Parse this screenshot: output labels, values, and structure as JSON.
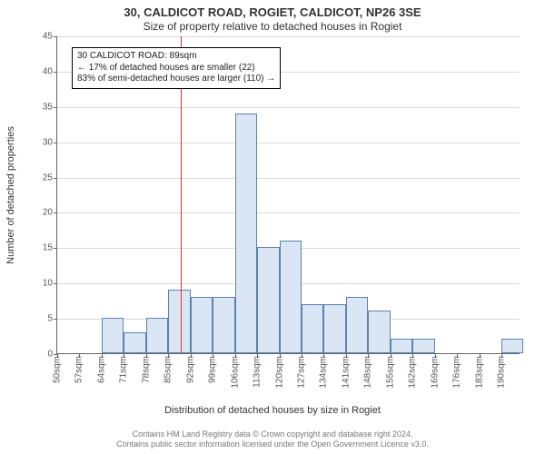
{
  "title_main": "30, CALDICOT ROAD, ROGIET, CALDICOT, NP26 3SE",
  "title_sub": "Size of property relative to detached houses in Rogiet",
  "ylabel": "Number of detached properties",
  "xlabel": "Distribution of detached houses by size in Rogiet",
  "footer_line1": "Contains HM Land Registry data © Crown copyright and database right 2024.",
  "footer_line2": "Contains public sector information licensed under the Open Government Licence v3.0.",
  "annotation": {
    "line1": "30 CALDICOT ROAD: 89sqm",
    "line2": "← 17% of detached houses are smaller (22)",
    "line3": "83% of semi-detached houses are larger (110) →"
  },
  "chart": {
    "type": "histogram",
    "ylim": [
      0,
      45
    ],
    "ytick_step": 5,
    "yticks": [
      0,
      5,
      10,
      15,
      20,
      25,
      30,
      35,
      40,
      45
    ],
    "x_min": 50,
    "x_max": 196,
    "xtick_step": 7,
    "xtick_suffix": "sqm",
    "bin_width": 7,
    "bins_start": 50,
    "values": [
      0,
      0,
      5,
      3,
      5,
      9,
      8,
      8,
      34,
      15,
      16,
      7,
      7,
      8,
      6,
      2,
      2,
      0,
      0,
      0,
      2
    ],
    "reference_x": 89,
    "bar_fill": "#dbe6f4",
    "bar_border": "#5b83b0",
    "grid_color": "#d9d9d9",
    "ref_color": "#e03030",
    "background": "#ffffff",
    "font_family": "Arial",
    "axis_fontsize": 10,
    "label_fontsize": 11,
    "title_fontsize_main": 13,
    "title_fontsize_sub": 12
  }
}
